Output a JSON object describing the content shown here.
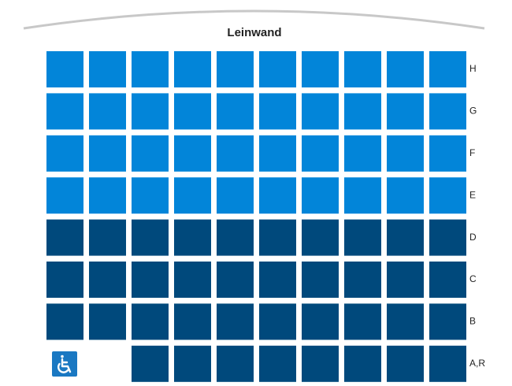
{
  "screen": {
    "label": "Leinwand"
  },
  "rows": [
    {
      "label": "H"
    },
    {
      "label": "G"
    },
    {
      "label": "F"
    },
    {
      "label": "E"
    },
    {
      "label": "D"
    },
    {
      "label": "C"
    },
    {
      "label": "B"
    },
    {
      "label": "A,R"
    }
  ]
}
